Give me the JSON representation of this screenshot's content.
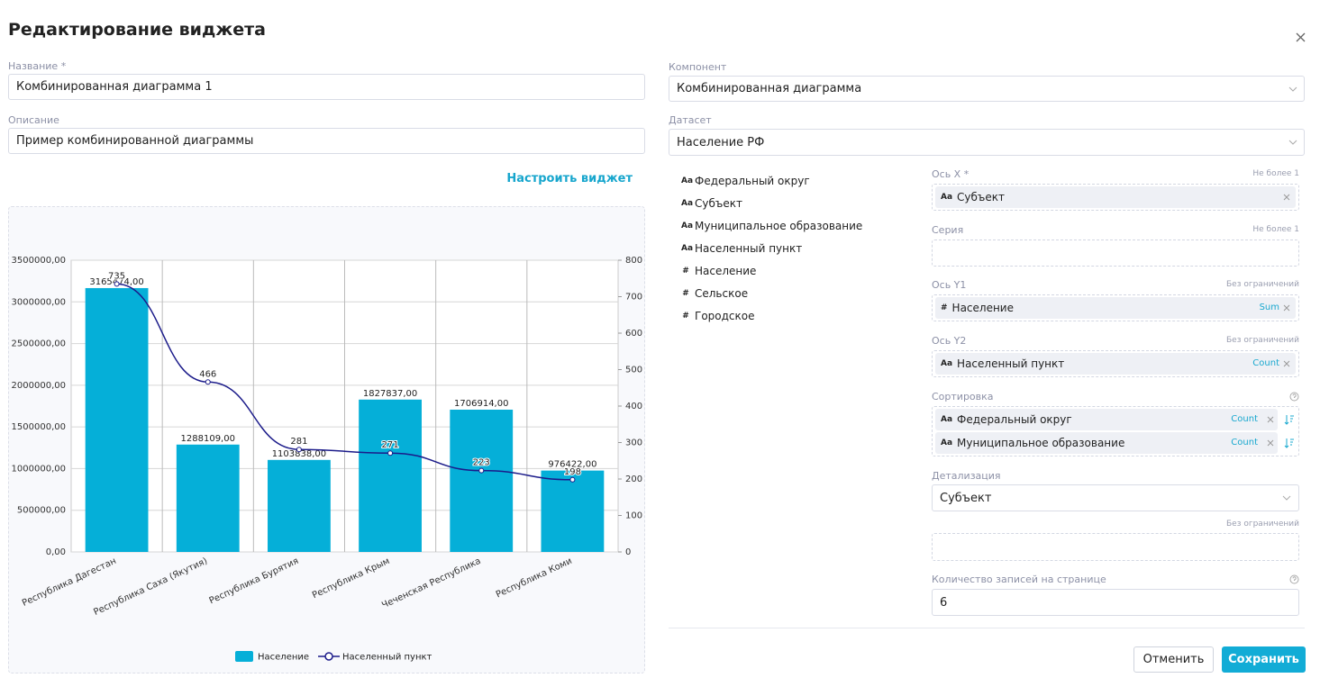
{
  "header": {
    "title": "Редактирование виджета"
  },
  "form": {
    "name": {
      "label": "Название *",
      "value": "Комбинированная диаграмма 1"
    },
    "description": {
      "label": "Описание",
      "value": "Пример комбинированной диаграммы"
    },
    "component": {
      "label": "Компонент",
      "value": "Комбинированная диаграмма"
    },
    "dataset": {
      "label": "Датасет",
      "value": "Население РФ"
    }
  },
  "configure_link": "Настроить виджет",
  "fields": [
    {
      "icon": "Aa",
      "label": "Федеральный округ"
    },
    {
      "icon": "Aa",
      "label": "Субъект"
    },
    {
      "icon": "Aa",
      "label": "Муниципальное образование"
    },
    {
      "icon": "Aa",
      "label": "Населенный пункт"
    },
    {
      "icon": "#",
      "label": "Население"
    },
    {
      "icon": "#",
      "label": "Сельское"
    },
    {
      "icon": "#",
      "label": "Городское"
    }
  ],
  "sections": [
    {
      "label": "Ось X *",
      "hint": "Не более 1",
      "items": [
        {
          "icon": "Aa",
          "label": "Субъект"
        }
      ]
    },
    {
      "label": "Серия",
      "hint": "Не более 1",
      "items": []
    },
    {
      "label": "Ось Y1",
      "hint": "Без ограничений",
      "items": [
        {
          "icon": "#",
          "label": "Население",
          "agg": "Sum"
        }
      ]
    },
    {
      "label": "Ось Y2",
      "hint": "Без ограничений",
      "items": [
        {
          "icon": "Aa",
          "label": "Населенный пункт",
          "agg": "Count"
        }
      ]
    },
    {
      "label": "Сортировка",
      "help": true,
      "items": [
        {
          "icon": "Aa",
          "label": "Федеральный округ",
          "agg": "Count",
          "sort": "desc"
        },
        {
          "icon": "Aa",
          "label": "Муниципальное образование",
          "agg": "Count",
          "sort": "desc"
        }
      ]
    }
  ],
  "detail": {
    "label": "Детализация",
    "value": "Субъект"
  },
  "extra": {
    "hint": "Без ограничений"
  },
  "page_size": {
    "label": "Количество записей на странице",
    "value": "6",
    "help": true
  },
  "buttons": {
    "cancel": "Отменить",
    "save": "Сохранить"
  },
  "chart_data": {
    "type": "bar-line",
    "categories": [
      "Республика Дагестан",
      "Республика Саха (Якутия)",
      "Республика Бурятия",
      "Республика Крым",
      "Чеченская Республика",
      "Республика Коми"
    ],
    "series": [
      {
        "name": "Население",
        "type": "bar",
        "color": "#05afd8",
        "values": [
          3165474,
          1288109,
          1103838,
          1827837,
          1706914,
          976422
        ],
        "value_labels": [
          "3165474,00",
          "1288109,00",
          "1103838,00",
          "1827837,00",
          "1706914,00",
          "976422,00"
        ]
      },
      {
        "name": "Населенный пункт",
        "type": "line",
        "axis": "y2",
        "color": "#1b1b8a",
        "values": [
          735,
          466,
          281,
          271,
          223,
          198
        ]
      }
    ],
    "ylim": [
      0,
      3500000
    ],
    "yticks": [
      {
        "value": 0,
        "label": "0,00"
      },
      {
        "value": 500000,
        "label": "500000,00"
      },
      {
        "value": 1000000,
        "label": "1000000,00"
      },
      {
        "value": 1500000,
        "label": "1500000,00"
      },
      {
        "value": 2000000,
        "label": "2000000,00"
      },
      {
        "value": 2500000,
        "label": "2500000,00"
      },
      {
        "value": 3000000,
        "label": "3000000,00"
      },
      {
        "value": 3500000,
        "label": "3500000,00"
      }
    ],
    "y2lim": [
      0,
      800
    ],
    "y2ticks": [
      0,
      100,
      200,
      300,
      400,
      500,
      600,
      700,
      800
    ],
    "grid": true,
    "legend": "bottom"
  }
}
